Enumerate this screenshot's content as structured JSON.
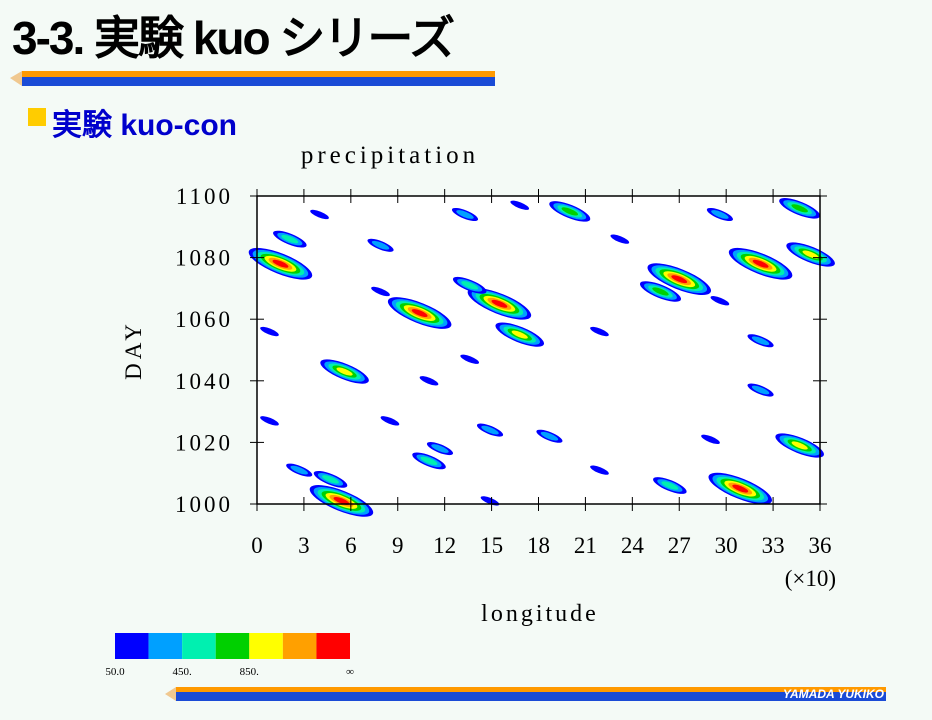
{
  "header": {
    "title": "3-3. 実験 kuo シリーズ",
    "subtitle": "実験 kuo-con"
  },
  "footer": {
    "author": "YAMADA YUKIKO"
  },
  "chart_data": {
    "type": "contour",
    "title": "precipitation",
    "xlabel": "longitude",
    "ylabel": "DAY",
    "x_multiplier": "(×10)",
    "xlim": [
      0,
      36
    ],
    "ylim": [
      1000,
      1100
    ],
    "xticks": [
      0,
      3,
      6,
      9,
      12,
      15,
      18,
      21,
      24,
      27,
      30,
      33,
      36
    ],
    "yticks": [
      1000,
      1020,
      1040,
      1060,
      1080,
      1100
    ],
    "levels": [
      50,
      250,
      450,
      650,
      850,
      1050,
      1250
    ],
    "level_labels": [
      "50.0",
      null,
      "450.",
      null,
      "850.",
      null,
      null
    ],
    "top_label": "∞",
    "colors": [
      "#0000ff",
      "#00a0ff",
      "#00f0b0",
      "#00d000",
      "#ffff00",
      "#ffa000",
      "#ff0000"
    ],
    "cells": {
      "x": [
        10.4,
        15.5,
        16.8,
        5.6,
        1.5,
        2.1,
        7.9,
        13.6,
        32.2,
        27,
        25.8,
        20,
        29.6,
        34.7,
        35.4,
        34.7,
        30.9,
        26.4,
        4.7,
        5.4,
        2.7,
        11.7,
        11,
        14.9,
        18.7,
        21.9,
        29,
        8.5,
        13.3,
        16.8,
        4,
        23.2,
        29.6,
        21.9,
        32.2,
        11,
        13.6,
        0.8,
        7.9,
        32.2,
        0.8,
        14.9
      ],
      "y": [
        1062,
        1065,
        1055,
        1043,
        1078,
        1086,
        1084,
        1071,
        1078,
        1073,
        1069,
        1095,
        1094,
        1096,
        1081,
        1019,
        1005,
        1006,
        1008,
        1001,
        1011,
        1018,
        1014,
        1024,
        1022,
        1011,
        1021,
        1027,
        1094,
        1097,
        1094,
        1086,
        1066,
        1056,
        1037,
        1040,
        1047,
        1056,
        1069,
        1053,
        1027,
        1001
      ],
      "values": [
        1300,
        1300,
        1000,
        1000,
        1300,
        500,
        300,
        500,
        1300,
        1300,
        700,
        700,
        300,
        800,
        1000,
        900,
        1300,
        500,
        600,
        1300,
        300,
        300,
        500,
        300,
        300,
        200,
        200,
        200,
        300,
        200,
        100,
        200,
        200,
        200,
        300,
        200,
        200,
        200,
        200,
        300,
        200,
        200
      ]
    }
  }
}
